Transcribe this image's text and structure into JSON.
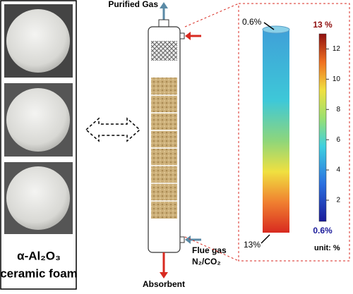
{
  "left_panel": {
    "title": "α-Al₂O₃",
    "subtitle": "ceramic foam"
  },
  "column": {
    "top_label": "Purified Gas",
    "bottom_label": "Absorbent",
    "inlet_label": "Flue gas",
    "inlet_gas": "N₂/CO₂"
  },
  "profile": {
    "top_label": "0.6%",
    "bottom_label": "13%",
    "unit": "unit: %",
    "colorbar": {
      "max": {
        "value": 13,
        "label": "13 %"
      },
      "min": {
        "value": 0.6,
        "label": "0.6%"
      },
      "ticks": [
        2,
        4,
        6,
        8,
        10,
        12
      ]
    }
  }
}
